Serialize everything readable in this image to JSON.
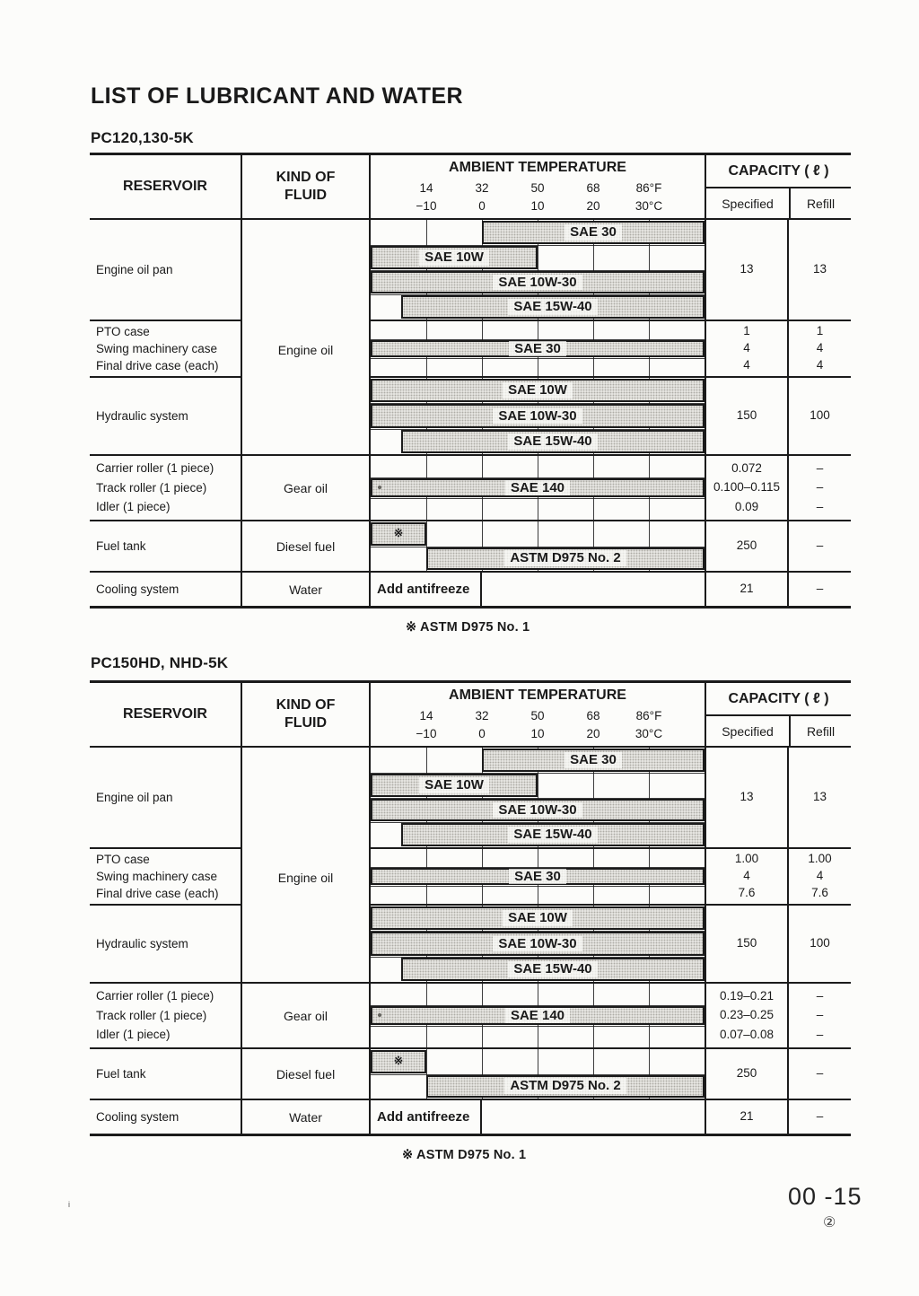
{
  "colors": {
    "paper": "#fcfcfa",
    "line": "#1b1b1b",
    "bar_fill": "#e7e6e2",
    "bar_dot": "#aeaca6"
  },
  "page": {
    "title": "LIST OF LUBRICANT AND WATER",
    "footnote": "※ ASTM D975 No. 1",
    "page_number": "00 -15",
    "page_circle_number": "②",
    "stray_mark": "i"
  },
  "header": {
    "reservoir": "RESERVOIR",
    "kind_of_fluid_line1": "KIND OF",
    "kind_of_fluid_line2": "FLUID",
    "ambient_title": "AMBIENT TEMPERATURE",
    "capacity_title": "CAPACITY ( ℓ )",
    "specified": "Specified",
    "refill": "Refill",
    "ticks_f": [
      "14",
      "32",
      "50",
      "68",
      "86°F"
    ],
    "ticks_c": [
      "−10",
      "0",
      "10",
      "20",
      "30°C"
    ]
  },
  "tables": [
    {
      "model": "PC120,130-5K",
      "rows": [
        {
          "reservoir": [
            "Engine oil pan"
          ],
          "fluid": "",
          "specified": [
            "13"
          ],
          "refill": [
            "13"
          ],
          "band": {
            "tracks": 4,
            "bars": [
              {
                "label": "SAE 30",
                "track": 0,
                "start": 2,
                "end": 6
              },
              {
                "label": "SAE 10W",
                "track": 1,
                "start": 0,
                "end": 3
              },
              {
                "label": "SAE 10W-30",
                "track": 2,
                "start": 0,
                "end": 6
              },
              {
                "label": "SAE 15W-40",
                "track": 3,
                "start": 0.55,
                "end": 6
              }
            ]
          }
        },
        {
          "reservoir": [
            "PTO case",
            "Swing machinery case",
            "Final drive case (each)"
          ],
          "fluid": "Engine oil",
          "specified": [
            "1",
            "4",
            "4"
          ],
          "refill": [
            "1",
            "4",
            "4"
          ],
          "band": {
            "tracks": 3,
            "bars": [
              {
                "label": "SAE 30",
                "track": 1,
                "start": 0,
                "end": 6
              }
            ]
          }
        },
        {
          "reservoir": [
            "Hydraulic system"
          ],
          "fluid": "",
          "specified": [
            "150"
          ],
          "refill": [
            "100"
          ],
          "band": {
            "tracks": 3,
            "bars": [
              {
                "label": "SAE 10W",
                "track": 0,
                "start": 0,
                "end": 6
              },
              {
                "label": "SAE 10W-30",
                "track": 1,
                "start": 0,
                "end": 6
              },
              {
                "label": "SAE 15W-40",
                "track": 2,
                "start": 0.55,
                "end": 6
              }
            ]
          }
        },
        {
          "reservoir": [
            "Carrier roller (1 piece)",
            "Track roller (1 piece)",
            "Idler (1 piece)"
          ],
          "fluid": "Gear oil",
          "specified": [
            "0.072",
            "0.100–0.115",
            "0.09"
          ],
          "refill": [
            "–",
            "–",
            "–"
          ],
          "band": {
            "tracks": 3,
            "bars": [
              {
                "label": "SAE 140",
                "track": 1,
                "start": 0,
                "end": 6,
                "dot": true
              }
            ]
          }
        },
        {
          "reservoir": [
            "Fuel tank"
          ],
          "fluid": "Diesel fuel",
          "specified": [
            "250"
          ],
          "refill": [
            "–"
          ],
          "band": {
            "tracks": 2,
            "bars": [
              {
                "label": "※",
                "track": 0,
                "start": 0,
                "end": 1,
                "small": true
              },
              {
                "label": "ASTM D975 No. 2",
                "track": 1,
                "start": 1,
                "end": 6
              }
            ]
          }
        },
        {
          "reservoir": [
            "Cooling system"
          ],
          "fluid": "Water",
          "specified": [
            "21"
          ],
          "refill": [
            "–"
          ],
          "band": {
            "type": "text",
            "label": "Add antifreeze"
          }
        }
      ]
    },
    {
      "model": "PC150HD, NHD-5K",
      "rows": [
        {
          "reservoir": [
            "Engine oil pan"
          ],
          "fluid": "",
          "specified": [
            "13"
          ],
          "refill": [
            "13"
          ],
          "band": {
            "tracks": 4,
            "bars": [
              {
                "label": "SAE 30",
                "track": 0,
                "start": 2,
                "end": 6
              },
              {
                "label": "SAE 10W",
                "track": 1,
                "start": 0,
                "end": 3
              },
              {
                "label": "SAE 10W-30",
                "track": 2,
                "start": 0,
                "end": 6
              },
              {
                "label": "SAE 15W-40",
                "track": 3,
                "start": 0.55,
                "end": 6
              }
            ]
          }
        },
        {
          "reservoir": [
            "PTO case",
            "Swing machinery case",
            "Final drive case (each)"
          ],
          "fluid": "Engine oil",
          "specified": [
            "1.00",
            "4",
            "7.6"
          ],
          "refill": [
            "1.00",
            "4",
            "7.6"
          ],
          "band": {
            "tracks": 3,
            "bars": [
              {
                "label": "SAE 30",
                "track": 1,
                "start": 0,
                "end": 6
              }
            ]
          }
        },
        {
          "reservoir": [
            "Hydraulic system"
          ],
          "fluid": "",
          "specified": [
            "150"
          ],
          "refill": [
            "100"
          ],
          "band": {
            "tracks": 3,
            "bars": [
              {
                "label": "SAE 10W",
                "track": 0,
                "start": 0,
                "end": 6
              },
              {
                "label": "SAE 10W-30",
                "track": 1,
                "start": 0,
                "end": 6
              },
              {
                "label": "SAE 15W-40",
                "track": 2,
                "start": 0.55,
                "end": 6
              }
            ]
          }
        },
        {
          "reservoir": [
            "Carrier roller (1 piece)",
            "Track roller (1 piece)",
            "Idler (1 piece)"
          ],
          "fluid": "Gear oil",
          "specified": [
            "0.19–0.21",
            "0.23–0.25",
            "0.07–0.08"
          ],
          "refill": [
            "–",
            "–",
            "–"
          ],
          "band": {
            "tracks": 3,
            "bars": [
              {
                "label": "SAE 140",
                "track": 1,
                "start": 0,
                "end": 6,
                "dot": true
              }
            ]
          }
        },
        {
          "reservoir": [
            "Fuel tank"
          ],
          "fluid": "Diesel fuel",
          "specified": [
            "250"
          ],
          "refill": [
            "–"
          ],
          "band": {
            "tracks": 2,
            "bars": [
              {
                "label": "※",
                "track": 0,
                "start": 0,
                "end": 1,
                "small": true
              },
              {
                "label": "ASTM D975 No. 2",
                "track": 1,
                "start": 1,
                "end": 6
              }
            ]
          }
        },
        {
          "reservoir": [
            "Cooling system"
          ],
          "fluid": "Water",
          "specified": [
            "21"
          ],
          "refill": [
            "–"
          ],
          "band": {
            "type": "text",
            "label": "Add antifreeze"
          }
        }
      ]
    }
  ]
}
